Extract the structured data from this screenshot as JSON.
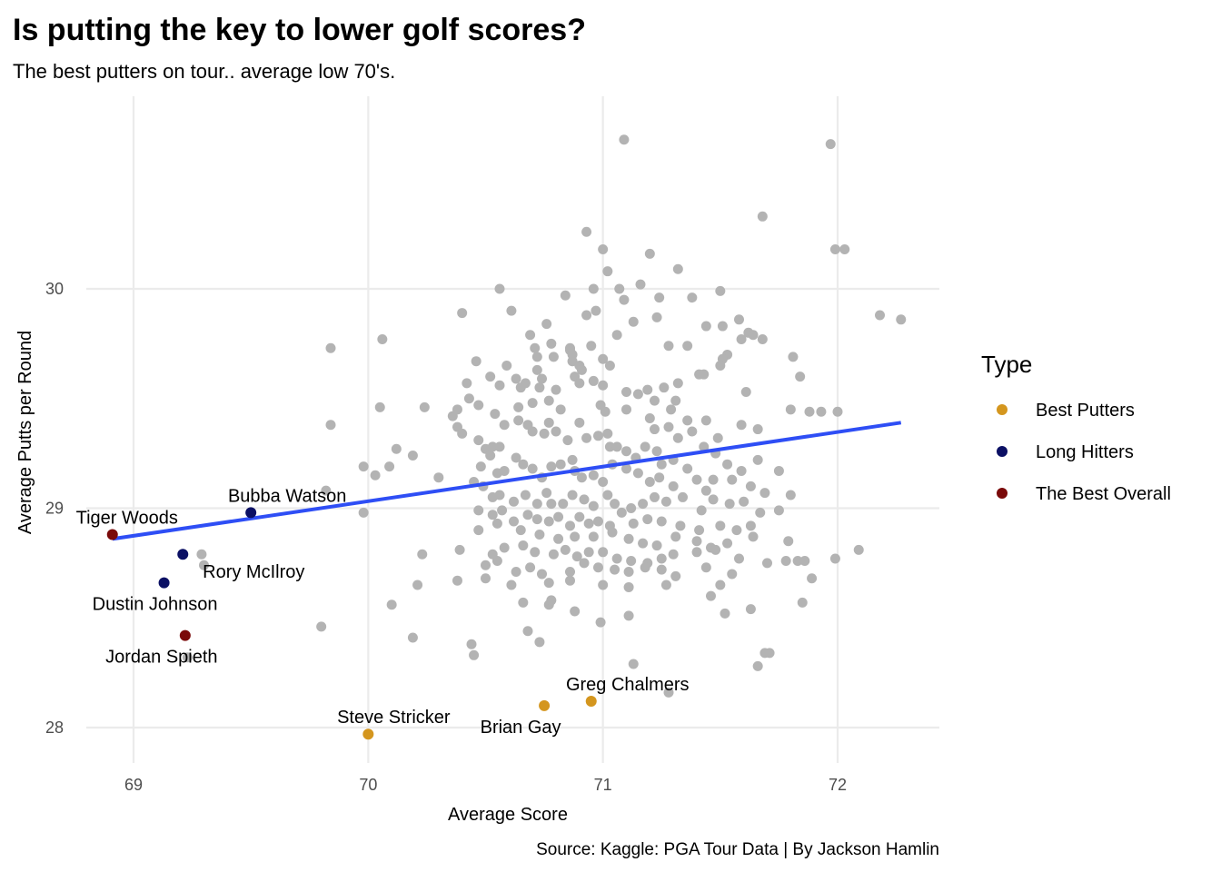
{
  "chart_data": {
    "type": "scatter",
    "title": "Is putting the key to lower golf scores?",
    "subtitle": "The best putters on tour.. average low 70's.",
    "xlabel": "Average Score",
    "ylabel": "Average Putts per Round",
    "caption": "Source: Kaggle: PGA Tour Data | By Jackson Hamlin",
    "xlim": [
      68.8,
      72.45
    ],
    "ylim": [
      27.8,
      30.75
    ],
    "x_ticks": [
      69,
      70,
      71,
      72
    ],
    "x_tick_labels": [
      "69",
      "70",
      "71",
      "72"
    ],
    "y_ticks": [
      28,
      29,
      30
    ],
    "y_tick_labels": [
      "28",
      "29",
      "30"
    ],
    "grid": true,
    "legend": {
      "title": "Type",
      "position": "right",
      "entries": [
        {
          "label": "Best Putters",
          "color": "#D4961E"
        },
        {
          "label": "Long Hitters",
          "color": "#0B1064"
        },
        {
          "label": "The Best Overall",
          "color": "#7A0A0A"
        }
      ]
    },
    "trend_line": {
      "color": "#2E4EF5",
      "x": [
        68.91,
        72.27
      ],
      "y": [
        28.86,
        29.39
      ]
    },
    "background_color": "#B3B3B3",
    "highlighted": [
      {
        "name": "Tiger Woods",
        "x": 68.91,
        "y": 28.88,
        "type": "The Best Overall",
        "label_pos": "top"
      },
      {
        "name": "Jordan Spieth",
        "x": 69.22,
        "y": 28.42,
        "type": "The Best Overall",
        "label_pos": "below-left"
      },
      {
        "name": "Bubba Watson",
        "x": 69.5,
        "y": 28.98,
        "type": "Long Hitters",
        "label_pos": "top-right"
      },
      {
        "name": "Rory McIlroy",
        "x": 69.21,
        "y": 28.79,
        "type": "Long Hitters",
        "label_pos": "below-right"
      },
      {
        "name": "Dustin Johnson",
        "x": 69.13,
        "y": 28.66,
        "type": "Long Hitters",
        "label_pos": "below"
      },
      {
        "name": "Steve Stricker",
        "x": 70.0,
        "y": 27.97,
        "type": "Best Putters",
        "label_pos": "top-left"
      },
      {
        "name": "Brian Gay",
        "x": 70.75,
        "y": 28.1,
        "type": "Best Putters",
        "label_pos": "below-left"
      },
      {
        "name": "Greg Chalmers",
        "x": 70.95,
        "y": 28.12,
        "type": "Best Putters",
        "label_pos": "top-right"
      }
    ],
    "background_points": [
      [
        71.09,
        30.68
      ],
      [
        71.97,
        30.66
      ],
      [
        71.68,
        30.33
      ],
      [
        70.93,
        30.26
      ],
      [
        71.0,
        30.18
      ],
      [
        71.2,
        30.16
      ],
      [
        71.99,
        30.18
      ],
      [
        72.03,
        30.18
      ],
      [
        71.32,
        30.09
      ],
      [
        71.02,
        30.08
      ],
      [
        71.16,
        30.02
      ],
      [
        70.56,
        30.0
      ],
      [
        70.96,
        30.0
      ],
      [
        71.07,
        30.0
      ],
      [
        71.5,
        29.99
      ],
      [
        70.84,
        29.97
      ],
      [
        71.09,
        29.95
      ],
      [
        71.24,
        29.96
      ],
      [
        71.38,
        29.96
      ],
      [
        70.4,
        29.89
      ],
      [
        70.61,
        29.9
      ],
      [
        70.93,
        29.88
      ],
      [
        70.97,
        29.9
      ],
      [
        71.13,
        29.85
      ],
      [
        71.23,
        29.87
      ],
      [
        71.58,
        29.86
      ],
      [
        71.44,
        29.83
      ],
      [
        71.51,
        29.83
      ],
      [
        71.62,
        29.8
      ],
      [
        72.18,
        29.88
      ],
      [
        72.27,
        29.86
      ],
      [
        70.76,
        29.84
      ],
      [
        70.69,
        29.79
      ],
      [
        71.06,
        29.79
      ],
      [
        71.28,
        29.74
      ],
      [
        71.36,
        29.74
      ],
      [
        71.59,
        29.77
      ],
      [
        71.64,
        29.79
      ],
      [
        71.68,
        29.77
      ],
      [
        70.78,
        29.75
      ],
      [
        70.86,
        29.73
      ],
      [
        70.95,
        29.74
      ],
      [
        71.53,
        29.7
      ],
      [
        71.51,
        29.68
      ],
      [
        71.5,
        29.65
      ],
      [
        71.81,
        29.69
      ],
      [
        71.61,
        29.53
      ],
      [
        71.84,
        29.6
      ],
      [
        71.41,
        29.61
      ],
      [
        71.43,
        29.61
      ],
      [
        71.32,
        29.57
      ],
      [
        71.31,
        29.49
      ],
      [
        71.26,
        29.55
      ],
      [
        71.19,
        29.54
      ],
      [
        70.46,
        29.67
      ],
      [
        70.59,
        29.65
      ],
      [
        70.72,
        29.63
      ],
      [
        70.79,
        29.69
      ],
      [
        70.72,
        29.69
      ],
      [
        70.71,
        29.73
      ],
      [
        70.86,
        29.72
      ],
      [
        70.87,
        29.67
      ],
      [
        70.9,
        29.65
      ],
      [
        70.88,
        29.6
      ],
      [
        71.0,
        29.68
      ],
      [
        70.87,
        29.7
      ],
      [
        70.91,
        29.63
      ],
      [
        71.03,
        29.65
      ],
      [
        70.52,
        29.6
      ],
      [
        70.56,
        29.56
      ],
      [
        70.63,
        29.59
      ],
      [
        70.65,
        29.55
      ],
      [
        70.67,
        29.57
      ],
      [
        70.73,
        29.55
      ],
      [
        70.74,
        29.59
      ],
      [
        70.8,
        29.54
      ],
      [
        70.9,
        29.57
      ],
      [
        70.96,
        29.58
      ],
      [
        71.0,
        29.56
      ],
      [
        71.1,
        29.53
      ],
      [
        71.15,
        29.52
      ],
      [
        71.22,
        29.49
      ],
      [
        71.29,
        29.45
      ],
      [
        71.36,
        29.4
      ],
      [
        70.42,
        29.57
      ],
      [
        70.43,
        29.5
      ],
      [
        70.38,
        29.45
      ],
      [
        70.24,
        29.46
      ],
      [
        70.05,
        29.46
      ],
      [
        69.84,
        29.73
      ],
      [
        70.06,
        29.77
      ],
      [
        70.47,
        29.47
      ],
      [
        70.54,
        29.43
      ],
      [
        70.64,
        29.46
      ],
      [
        70.7,
        29.48
      ],
      [
        70.77,
        29.49
      ],
      [
        70.82,
        29.45
      ],
      [
        70.99,
        29.47
      ],
      [
        71.01,
        29.44
      ],
      [
        71.1,
        29.45
      ],
      [
        71.2,
        29.41
      ],
      [
        71.22,
        29.36
      ],
      [
        71.28,
        29.37
      ],
      [
        71.32,
        29.32
      ],
      [
        71.38,
        29.35
      ],
      [
        71.44,
        29.4
      ],
      [
        71.49,
        29.32
      ],
      [
        71.59,
        29.38
      ],
      [
        71.66,
        29.36
      ],
      [
        71.8,
        29.45
      ],
      [
        71.88,
        29.44
      ],
      [
        71.93,
        29.44
      ],
      [
        72.0,
        29.44
      ],
      [
        70.36,
        29.42
      ],
      [
        70.38,
        29.37
      ],
      [
        70.4,
        29.34
      ],
      [
        70.47,
        29.31
      ],
      [
        70.5,
        29.27
      ],
      [
        70.53,
        29.28
      ],
      [
        70.56,
        29.28
      ],
      [
        70.58,
        29.38
      ],
      [
        70.64,
        29.4
      ],
      [
        70.68,
        29.38
      ],
      [
        70.7,
        29.35
      ],
      [
        70.75,
        29.34
      ],
      [
        70.77,
        29.39
      ],
      [
        70.8,
        29.35
      ],
      [
        70.85,
        29.31
      ],
      [
        70.9,
        29.39
      ],
      [
        70.93,
        29.32
      ],
      [
        70.98,
        29.33
      ],
      [
        71.02,
        29.34
      ],
      [
        71.03,
        29.28
      ],
      [
        71.06,
        29.28
      ],
      [
        71.1,
        29.26
      ],
      [
        71.14,
        29.23
      ],
      [
        71.18,
        29.28
      ],
      [
        71.23,
        29.26
      ],
      [
        71.25,
        29.2
      ],
      [
        71.3,
        29.22
      ],
      [
        71.36,
        29.18
      ],
      [
        71.43,
        29.28
      ],
      [
        71.48,
        29.25
      ],
      [
        71.53,
        29.2
      ],
      [
        71.59,
        29.17
      ],
      [
        71.66,
        29.22
      ],
      [
        71.75,
        29.17
      ],
      [
        69.84,
        29.38
      ],
      [
        69.98,
        29.19
      ],
      [
        70.09,
        29.19
      ],
      [
        70.12,
        29.27
      ],
      [
        70.03,
        29.15
      ],
      [
        70.19,
        29.24
      ],
      [
        70.3,
        29.14
      ],
      [
        70.48,
        29.19
      ],
      [
        70.52,
        29.24
      ],
      [
        70.55,
        29.16
      ],
      [
        70.58,
        29.17
      ],
      [
        70.63,
        29.23
      ],
      [
        70.66,
        29.2
      ],
      [
        70.7,
        29.18
      ],
      [
        70.74,
        29.14
      ],
      [
        70.78,
        29.19
      ],
      [
        70.82,
        29.2
      ],
      [
        70.87,
        29.22
      ],
      [
        70.88,
        29.17
      ],
      [
        70.91,
        29.14
      ],
      [
        70.96,
        29.15
      ],
      [
        71.0,
        29.12
      ],
      [
        71.04,
        29.2
      ],
      [
        71.1,
        29.18
      ],
      [
        71.15,
        29.16
      ],
      [
        71.2,
        29.12
      ],
      [
        71.24,
        29.14
      ],
      [
        71.3,
        29.1
      ],
      [
        71.4,
        29.13
      ],
      [
        71.44,
        29.08
      ],
      [
        71.47,
        29.13
      ],
      [
        71.55,
        29.13
      ],
      [
        71.63,
        29.1
      ],
      [
        71.69,
        29.07
      ],
      [
        71.8,
        29.06
      ],
      [
        70.45,
        29.12
      ],
      [
        70.49,
        29.1
      ],
      [
        70.53,
        29.05
      ],
      [
        70.56,
        29.06
      ],
      [
        70.62,
        29.03
      ],
      [
        70.67,
        29.06
      ],
      [
        70.72,
        29.02
      ],
      [
        70.76,
        29.07
      ],
      [
        70.78,
        29.02
      ],
      [
        70.83,
        29.02
      ],
      [
        70.87,
        29.06
      ],
      [
        70.92,
        29.04
      ],
      [
        70.96,
        29.01
      ],
      [
        71.02,
        29.06
      ],
      [
        71.05,
        29.02
      ],
      [
        71.12,
        29.0
      ],
      [
        71.17,
        29.02
      ],
      [
        71.22,
        29.05
      ],
      [
        71.27,
        29.03
      ],
      [
        71.34,
        29.05
      ],
      [
        71.42,
        28.99
      ],
      [
        71.47,
        29.04
      ],
      [
        71.54,
        29.02
      ],
      [
        71.6,
        29.03
      ],
      [
        71.67,
        28.98
      ],
      [
        71.75,
        28.99
      ],
      [
        69.82,
        29.08
      ],
      [
        69.98,
        28.98
      ],
      [
        70.47,
        28.99
      ],
      [
        70.53,
        28.97
      ],
      [
        70.57,
        28.99
      ],
      [
        70.62,
        28.94
      ],
      [
        70.68,
        28.97
      ],
      [
        70.72,
        28.95
      ],
      [
        70.77,
        28.94
      ],
      [
        70.81,
        28.96
      ],
      [
        70.86,
        28.92
      ],
      [
        70.9,
        28.96
      ],
      [
        70.94,
        28.93
      ],
      [
        70.98,
        28.94
      ],
      [
        71.03,
        28.92
      ],
      [
        71.08,
        28.98
      ],
      [
        71.13,
        28.93
      ],
      [
        71.19,
        28.95
      ],
      [
        71.25,
        28.94
      ],
      [
        71.33,
        28.92
      ],
      [
        71.41,
        28.9
      ],
      [
        71.5,
        28.92
      ],
      [
        71.57,
        28.9
      ],
      [
        71.63,
        28.92
      ],
      [
        70.47,
        28.9
      ],
      [
        70.55,
        28.93
      ],
      [
        70.65,
        28.9
      ],
      [
        70.73,
        28.88
      ],
      [
        70.81,
        28.86
      ],
      [
        70.88,
        28.87
      ],
      [
        70.96,
        28.87
      ],
      [
        71.04,
        28.89
      ],
      [
        71.11,
        28.86
      ],
      [
        71.17,
        28.84
      ],
      [
        71.23,
        28.83
      ],
      [
        71.31,
        28.87
      ],
      [
        71.4,
        28.85
      ],
      [
        71.46,
        28.82
      ],
      [
        71.53,
        28.84
      ],
      [
        71.64,
        28.87
      ],
      [
        71.79,
        28.85
      ],
      [
        69.3,
        28.74
      ],
      [
        70.39,
        28.81
      ],
      [
        70.53,
        28.79
      ],
      [
        70.58,
        28.82
      ],
      [
        70.66,
        28.83
      ],
      [
        70.71,
        28.8
      ],
      [
        70.79,
        28.79
      ],
      [
        70.84,
        28.81
      ],
      [
        70.89,
        28.78
      ],
      [
        70.94,
        28.8
      ],
      [
        71.0,
        28.8
      ],
      [
        71.06,
        28.77
      ],
      [
        71.12,
        28.76
      ],
      [
        71.19,
        28.75
      ],
      [
        71.25,
        28.77
      ],
      [
        71.3,
        28.79
      ],
      [
        71.4,
        28.8
      ],
      [
        71.48,
        28.81
      ],
      [
        71.58,
        28.77
      ],
      [
        71.7,
        28.75
      ],
      [
        71.78,
        28.76
      ],
      [
        71.83,
        28.76
      ],
      [
        71.86,
        28.76
      ],
      [
        71.99,
        28.77
      ],
      [
        72.09,
        28.81
      ],
      [
        69.29,
        28.79
      ],
      [
        70.23,
        28.79
      ],
      [
        70.5,
        28.74
      ],
      [
        70.55,
        28.76
      ],
      [
        70.63,
        28.71
      ],
      [
        70.69,
        28.73
      ],
      [
        70.74,
        28.7
      ],
      [
        70.86,
        28.71
      ],
      [
        70.92,
        28.75
      ],
      [
        70.98,
        28.73
      ],
      [
        71.05,
        28.72
      ],
      [
        71.11,
        28.71
      ],
      [
        71.18,
        28.73
      ],
      [
        71.25,
        28.72
      ],
      [
        71.31,
        28.69
      ],
      [
        71.44,
        28.73
      ],
      [
        71.55,
        28.7
      ],
      [
        71.89,
        28.68
      ],
      [
        70.21,
        28.65
      ],
      [
        70.38,
        28.67
      ],
      [
        70.5,
        28.68
      ],
      [
        70.61,
        28.65
      ],
      [
        70.77,
        28.66
      ],
      [
        70.86,
        28.67
      ],
      [
        71.0,
        28.65
      ],
      [
        71.11,
        28.64
      ],
      [
        71.27,
        28.65
      ],
      [
        71.5,
        28.65
      ],
      [
        70.66,
        28.57
      ],
      [
        70.77,
        28.56
      ],
      [
        70.78,
        28.58
      ],
      [
        70.88,
        28.53
      ],
      [
        71.11,
        28.51
      ],
      [
        71.46,
        28.6
      ],
      [
        71.52,
        28.52
      ],
      [
        71.63,
        28.54
      ],
      [
        71.85,
        28.57
      ],
      [
        70.1,
        28.56
      ],
      [
        69.8,
        28.46
      ],
      [
        70.19,
        28.41
      ],
      [
        70.44,
        28.38
      ],
      [
        70.45,
        28.33
      ],
      [
        70.68,
        28.44
      ],
      [
        70.73,
        28.39
      ],
      [
        71.13,
        28.29
      ],
      [
        71.28,
        28.16
      ],
      [
        71.66,
        28.28
      ],
      [
        71.69,
        28.34
      ],
      [
        71.71,
        28.34
      ],
      [
        69.23,
        28.32
      ],
      [
        70.99,
        28.48
      ]
    ]
  }
}
